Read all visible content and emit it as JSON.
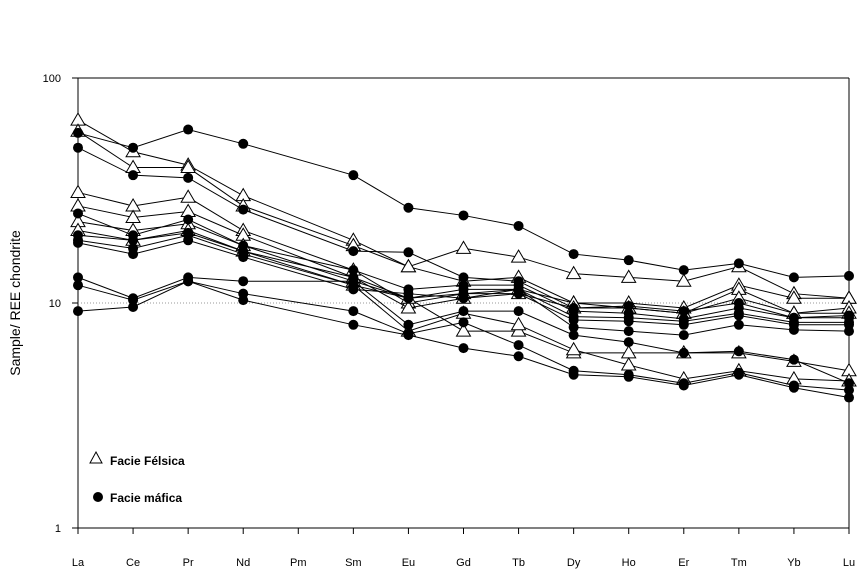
{
  "chart_data": {
    "type": "line",
    "ylabel": "Sample/ REE chondrite",
    "xlabel": "",
    "title": "",
    "y_scale": "log",
    "ylim": [
      1,
      100
    ],
    "y_ticks": [
      "100",
      "10",
      "1"
    ],
    "reference_line": 10,
    "categories": [
      "La",
      "Ce",
      "Pr",
      "Nd",
      "Pm",
      "Sm",
      "Eu",
      "Gd",
      "Tb",
      "Dy",
      "Ho",
      "Er",
      "Tm",
      "Yb",
      "Lu"
    ],
    "legend": [
      {
        "label": "Facie Félsica",
        "marker": "open-triangle"
      },
      {
        "label": "Facie máfica",
        "marker": "filled-circle"
      }
    ],
    "legend_position": "bottom-left",
    "series": [
      {
        "group": "felsic",
        "values": [
          65,
          47,
          41,
          30,
          null,
          19,
          14.5,
          17.5,
          16,
          13.5,
          13,
          12.5,
          14.5,
          11,
          10.5
        ]
      },
      {
        "group": "felsic",
        "values": [
          58,
          40,
          40,
          27,
          null,
          18,
          14.5,
          12.5,
          13,
          10,
          10,
          9.5,
          12,
          10.5,
          10.5
        ]
      },
      {
        "group": "felsic",
        "values": [
          31,
          27,
          29.5,
          21,
          null,
          14,
          10,
          11,
          11.5,
          10,
          9.5,
          9,
          11.5,
          9,
          9.5
        ]
      },
      {
        "group": "felsic",
        "values": [
          27,
          24,
          25.5,
          20,
          null,
          13,
          9.5,
          10.5,
          11,
          9.5,
          9.5,
          9,
          10.5,
          9,
          9
        ]
      },
      {
        "group": "felsic",
        "values": [
          23,
          21,
          22.5,
          18,
          null,
          12.5,
          10.5,
          7.5,
          7.5,
          6,
          6,
          6,
          6,
          5.5,
          5
        ]
      },
      {
        "group": "felsic",
        "values": [
          21,
          19,
          21,
          17,
          null,
          12,
          7.5,
          9,
          8,
          6.2,
          5.3,
          4.6,
          5,
          4.6,
          4.5
        ]
      },
      {
        "group": "mafic",
        "values": [
          57,
          49,
          59,
          51,
          null,
          37,
          26.5,
          24.5,
          22,
          16.5,
          15.5,
          14,
          15,
          13,
          13.2
        ]
      },
      {
        "group": "mafic",
        "values": [
          49,
          37,
          36,
          26,
          null,
          17,
          16.8,
          13,
          12.5,
          9.5,
          9.7,
          9.2,
          10,
          8.6,
          8.8
        ]
      },
      {
        "group": "mafic",
        "values": [
          25,
          20,
          23.5,
          18,
          null,
          14,
          11.5,
          12,
          12,
          9.2,
          9,
          8.5,
          9.5,
          8.6,
          8.6
        ]
      },
      {
        "group": "mafic",
        "values": [
          20,
          19,
          20.5,
          17,
          null,
          13,
          10.5,
          11.5,
          11.5,
          8.7,
          8.6,
          8.3,
          9,
          8.2,
          8.2
        ]
      },
      {
        "group": "mafic",
        "values": [
          19,
          17.5,
          20,
          16.5,
          null,
          12,
          10.5,
          11,
          11,
          8.4,
          8.3,
          8,
          8.8,
          8,
          8
        ]
      },
      {
        "group": "mafic",
        "values": [
          18.5,
          16.5,
          19,
          16,
          null,
          11.5,
          11,
          10.5,
          11.5,
          7.8,
          7.5,
          7.2,
          8,
          7.6,
          7.5
        ]
      },
      {
        "group": "mafic",
        "values": [
          13,
          10.5,
          13,
          12.5,
          null,
          12.5,
          8,
          9.2,
          9.2,
          7.2,
          6.7,
          6,
          6.1,
          5.6,
          4.4
        ]
      },
      {
        "group": "mafic",
        "values": [
          12,
          10.3,
          12.5,
          11,
          null,
          9.2,
          7.3,
          8.2,
          6.5,
          5,
          4.8,
          4.4,
          4.9,
          4.3,
          4.1
        ]
      },
      {
        "group": "mafic",
        "values": [
          9.2,
          9.6,
          12.5,
          10.3,
          null,
          8,
          7.2,
          6.3,
          5.8,
          4.8,
          4.7,
          4.3,
          4.8,
          4.2,
          3.8
        ]
      }
    ]
  }
}
